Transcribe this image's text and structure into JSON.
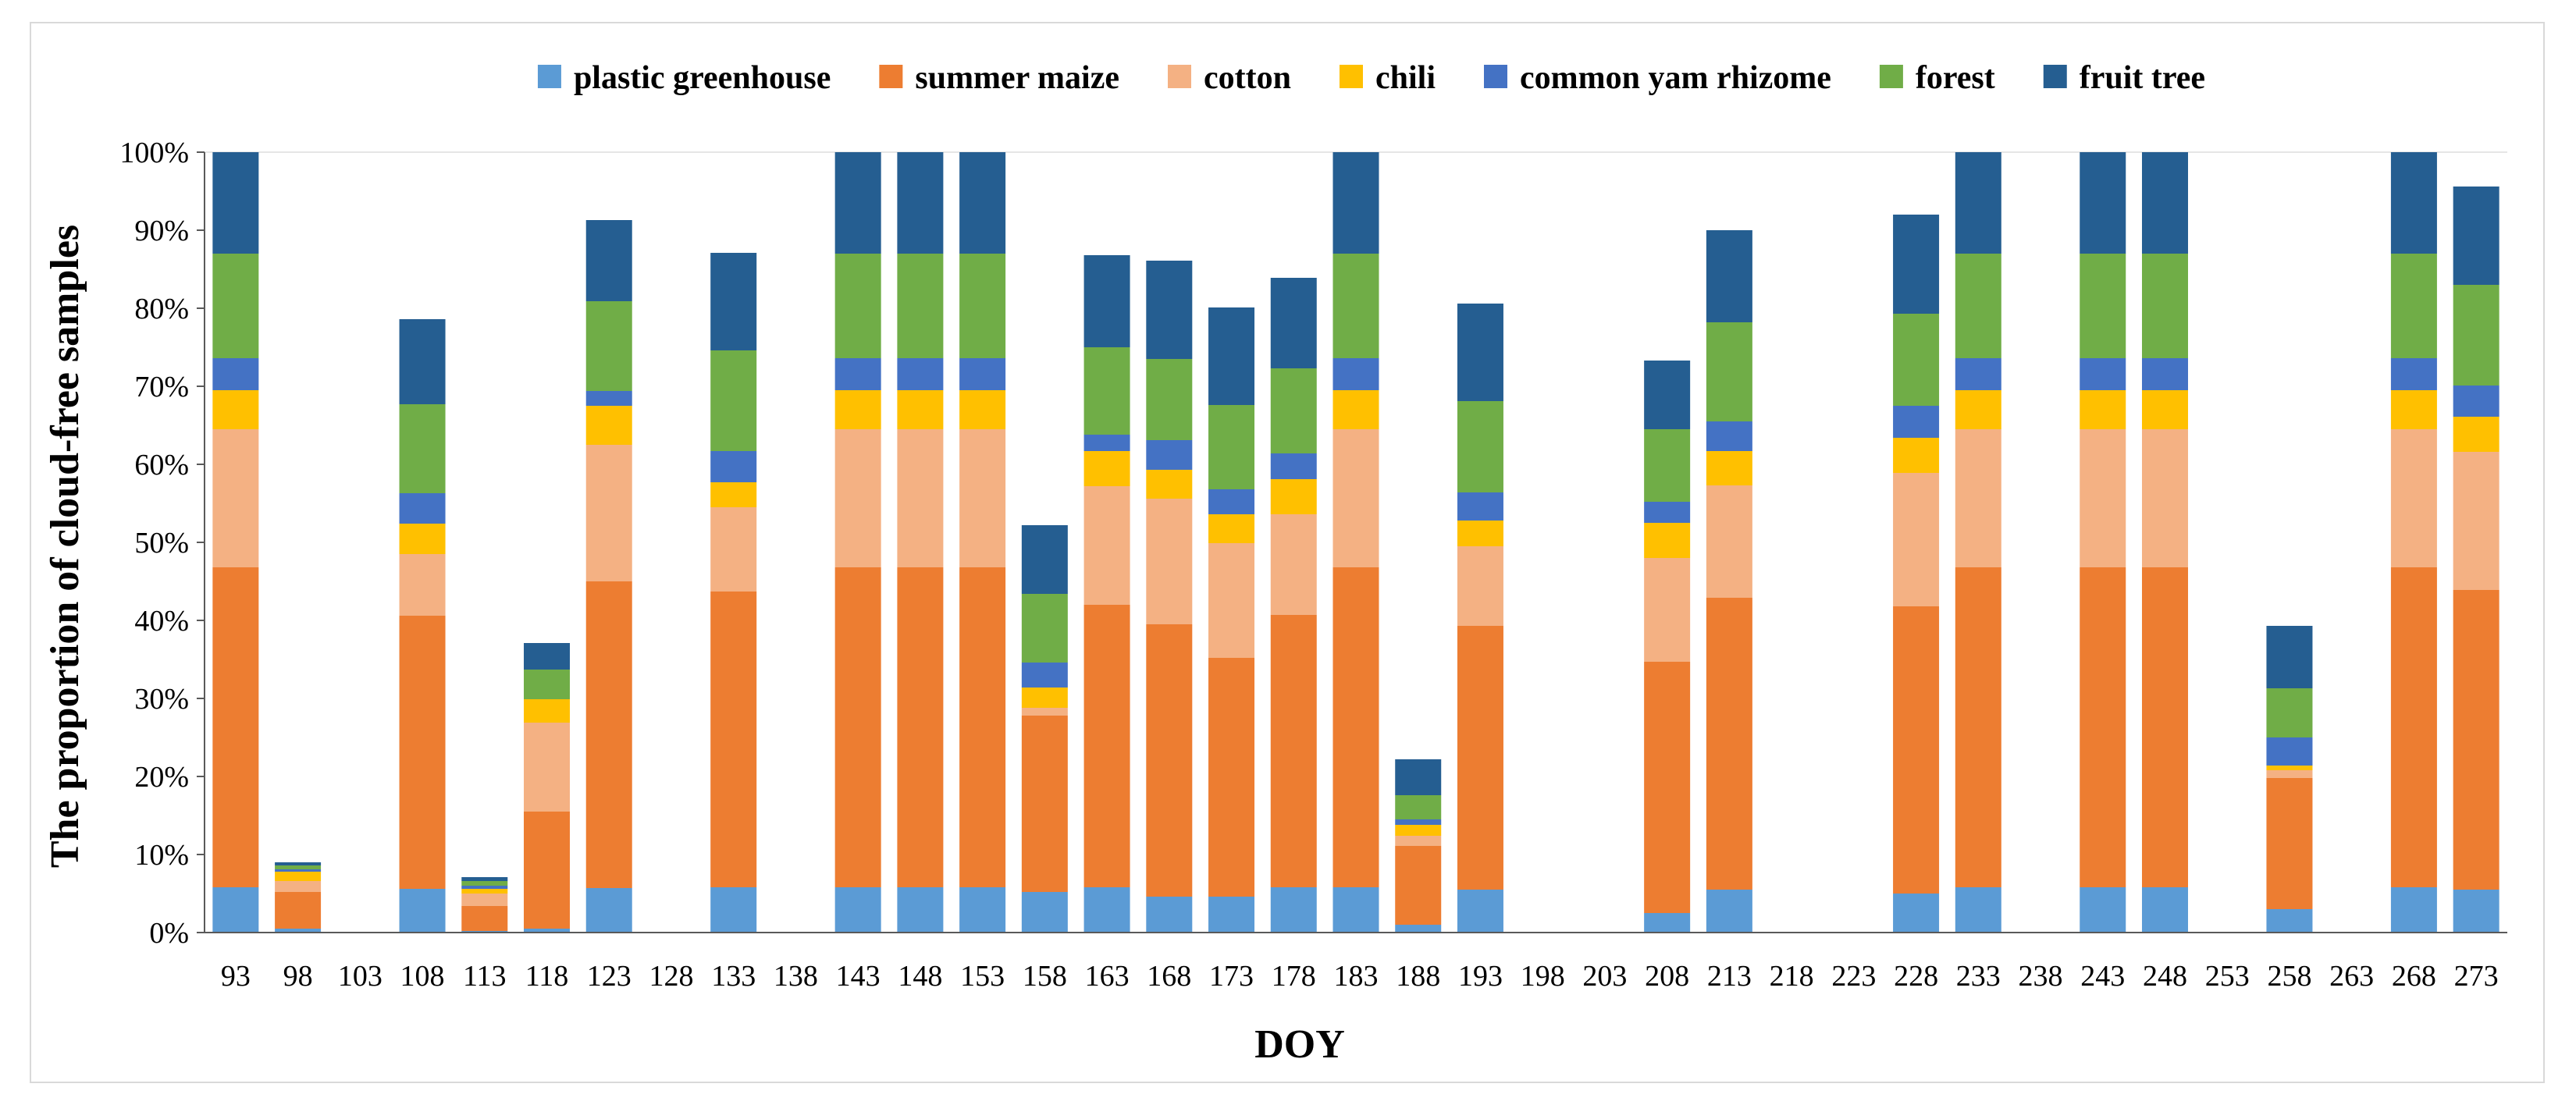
{
  "chart_data": {
    "type": "bar",
    "stacked": true,
    "title": "",
    "xlabel": "DOY",
    "ylabel": "The proportion of cloud-free samples",
    "ylim": [
      0,
      100
    ],
    "y_ticks": [
      "0%",
      "10%",
      "20%",
      "30%",
      "40%",
      "50%",
      "60%",
      "70%",
      "80%",
      "90%",
      "100%"
    ],
    "legend_position": "top",
    "categories": [
      "93",
      "98",
      "103",
      "108",
      "113",
      "118",
      "123",
      "128",
      "133",
      "138",
      "143",
      "148",
      "153",
      "158",
      "163",
      "168",
      "173",
      "178",
      "183",
      "188",
      "193",
      "198",
      "203",
      "208",
      "213",
      "218",
      "223",
      "228",
      "233",
      "238",
      "243",
      "248",
      "253",
      "258",
      "263",
      "268",
      "273"
    ],
    "series": [
      {
        "name": "plastic greenhouse",
        "color": "#5b9bd5",
        "values": [
          5.8,
          0.5,
          0,
          5.6,
          0.2,
          0.5,
          5.7,
          0,
          5.8,
          0,
          5.8,
          5.8,
          5.8,
          5.2,
          5.8,
          4.6,
          4.6,
          5.8,
          5.8,
          1,
          5.5,
          0,
          0,
          2.5,
          5.5,
          0,
          0,
          5,
          5.8,
          0,
          5.8,
          5.8,
          0,
          3,
          0,
          5.8,
          5.5
        ]
      },
      {
        "name": "summer maize",
        "color": "#ed7d31",
        "values": [
          41,
          4.7,
          0,
          35,
          3.2,
          15,
          39.3,
          0,
          37.9,
          0,
          41,
          41,
          41,
          22.6,
          36.2,
          34.9,
          30.6,
          34.9,
          41,
          10.1,
          33.8,
          0,
          0,
          32.2,
          37.4,
          0,
          0,
          36.8,
          41,
          0,
          41,
          41,
          0,
          16.8,
          0,
          41,
          38.4
        ]
      },
      {
        "name": "cotton",
        "color": "#f4b183",
        "values": [
          17.7,
          1.4,
          0,
          7.9,
          1.6,
          11.4,
          17.5,
          0,
          10.8,
          0,
          17.7,
          17.7,
          17.7,
          1,
          15.2,
          16.1,
          14.7,
          12.9,
          17.7,
          1.3,
          10.2,
          0,
          0,
          13.3,
          14.4,
          0,
          0,
          17.1,
          17.7,
          0,
          17.7,
          17.7,
          0,
          1,
          0,
          17.7,
          17.7
        ]
      },
      {
        "name": "chili",
        "color": "#ffc000",
        "values": [
          5,
          1.2,
          0,
          3.9,
          0.6,
          3,
          5,
          0,
          3.2,
          0,
          5,
          5,
          5,
          2.6,
          4.5,
          3.7,
          3.7,
          4.5,
          5,
          1.4,
          3.3,
          0,
          0,
          4.5,
          4.4,
          0,
          0,
          4.5,
          5,
          0,
          5,
          5,
          0,
          0.6,
          0,
          5,
          4.5
        ]
      },
      {
        "name": "common yam rhizome",
        "color": "#4472c4",
        "values": [
          4.1,
          0.3,
          0,
          3.9,
          0.4,
          0,
          1.9,
          0,
          4,
          0,
          4.1,
          4.1,
          4.1,
          3.2,
          2.1,
          3.8,
          3.2,
          3.3,
          4.1,
          0.7,
          3.6,
          0,
          0,
          2.7,
          3.8,
          0,
          0,
          4.1,
          4.1,
          0,
          4.1,
          4.1,
          0,
          3.6,
          0,
          4.1,
          4
        ]
      },
      {
        "name": "forest",
        "color": "#70ad47",
        "values": [
          13.4,
          0.5,
          0,
          11.4,
          0.6,
          3.8,
          11.5,
          0,
          12.9,
          0,
          13.4,
          13.4,
          13.4,
          8.8,
          11.2,
          10.4,
          10.8,
          10.9,
          13.4,
          3.1,
          11.7,
          0,
          0,
          9.3,
          12.7,
          0,
          0,
          11.8,
          13.4,
          0,
          13.4,
          13.4,
          0,
          6.3,
          0,
          13.4,
          12.9
        ]
      },
      {
        "name": "fruit tree",
        "color": "#255e91",
        "values": [
          13,
          0.4,
          0,
          10.9,
          0.5,
          3.4,
          10.4,
          0,
          12.5,
          0,
          13,
          13,
          13,
          8.8,
          11.8,
          12.6,
          12.5,
          11.6,
          13,
          4.6,
          12.5,
          0,
          0,
          8.8,
          11.8,
          0,
          0,
          12.7,
          13,
          0,
          13,
          13,
          0,
          8,
          0,
          13,
          12.6
        ]
      }
    ]
  }
}
